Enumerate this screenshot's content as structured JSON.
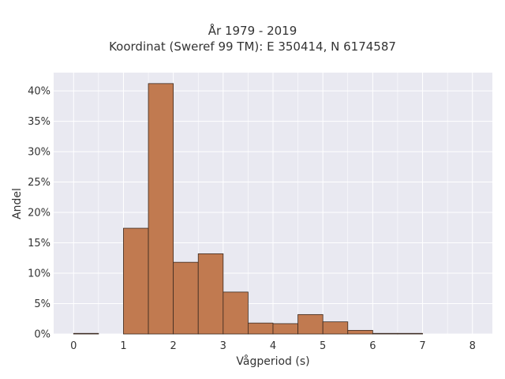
{
  "chart_data": {
    "type": "bar",
    "title": [
      "År 1979 - 2019",
      "Koordinat (Sweref 99 TM): E 350414, N 6174587"
    ],
    "xlabel": "Vågperiod (s)",
    "ylabel": "Andel",
    "xlim": [
      -0.4,
      8.4
    ],
    "ylim": [
      0,
      0.43
    ],
    "x_ticks": [
      0,
      1,
      2,
      3,
      4,
      5,
      6,
      7,
      8
    ],
    "x_tick_labels": [
      "0",
      "1",
      "2",
      "3",
      "4",
      "5",
      "6",
      "7",
      "8"
    ],
    "y_ticks": [
      0,
      0.05,
      0.1,
      0.15,
      0.2,
      0.25,
      0.3,
      0.35,
      0.4
    ],
    "y_tick_labels": [
      "0%",
      "5%",
      "10%",
      "15%",
      "20%",
      "25%",
      "30%",
      "35%",
      "40%"
    ],
    "bin_width": 0.5,
    "bins": [
      {
        "x0": 0.0,
        "x1": 0.5,
        "value": 0.001
      },
      {
        "x0": 1.0,
        "x1": 1.5,
        "value": 0.174
      },
      {
        "x0": 1.5,
        "x1": 2.0,
        "value": 0.412
      },
      {
        "x0": 2.0,
        "x1": 2.5,
        "value": 0.118
      },
      {
        "x0": 2.5,
        "x1": 3.0,
        "value": 0.132
      },
      {
        "x0": 3.0,
        "x1": 3.5,
        "value": 0.069
      },
      {
        "x0": 3.5,
        "x1": 4.0,
        "value": 0.018
      },
      {
        "x0": 4.0,
        "x1": 4.5,
        "value": 0.017
      },
      {
        "x0": 4.5,
        "x1": 5.0,
        "value": 0.032
      },
      {
        "x0": 5.0,
        "x1": 5.5,
        "value": 0.02
      },
      {
        "x0": 5.5,
        "x1": 6.0,
        "value": 0.006
      },
      {
        "x0": 6.0,
        "x1": 6.5,
        "value": 0.001
      },
      {
        "x0": 6.5,
        "x1": 7.0,
        "value": 0.001
      }
    ],
    "bar_color": "#c17a50",
    "bar_edge_color": "#3b2a20",
    "plot_background": "#e9e9f1",
    "grid": true,
    "grid_color": "#ffffff"
  }
}
